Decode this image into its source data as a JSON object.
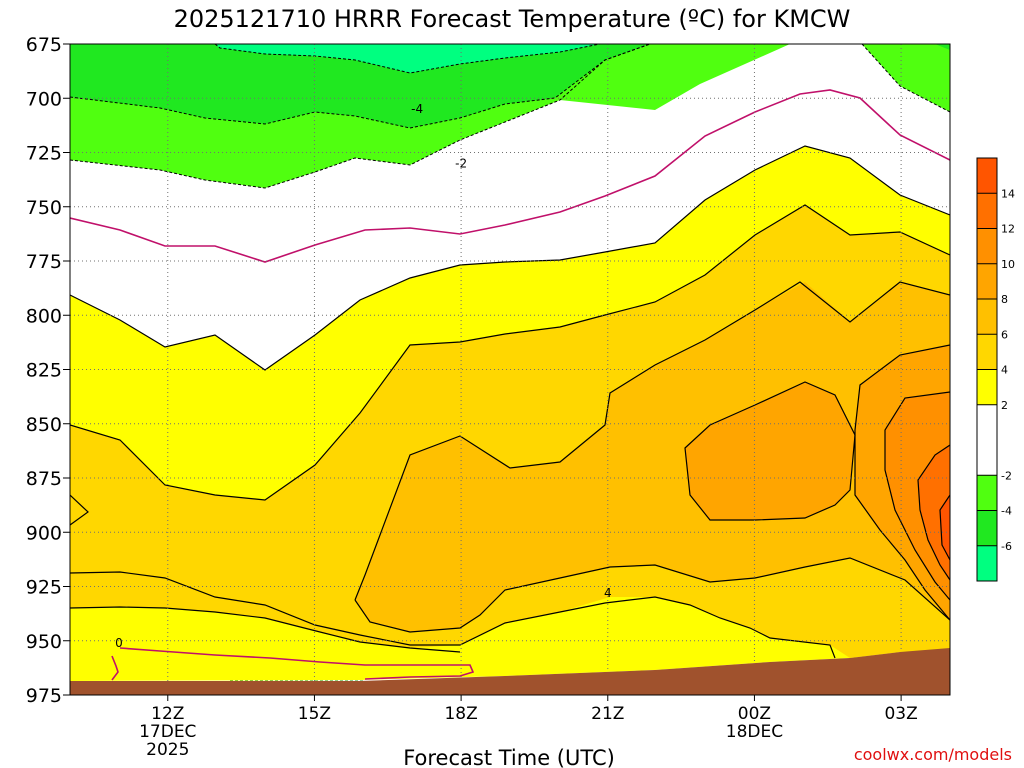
{
  "chart_data": {
    "type": "contour",
    "title": "2025121710 HRRR Forecast Temperature (ºC) for KMCW",
    "xlabel": "Forecast Time (UTC)",
    "ylabel": "",
    "credit": "coolwx.com/models",
    "x_ticks": [
      {
        "hour": 12,
        "label": "12Z",
        "sub": [
          "17DEC",
          "2025"
        ]
      },
      {
        "hour": 15,
        "label": "15Z",
        "sub": []
      },
      {
        "hour": 18,
        "label": "18Z",
        "sub": []
      },
      {
        "hour": 21,
        "label": "21Z",
        "sub": []
      },
      {
        "hour": 24,
        "label": "00Z",
        "sub": [
          "18DEC"
        ]
      },
      {
        "hour": 27,
        "label": "03Z",
        "sub": []
      }
    ],
    "xlim": [
      10.0,
      28.0
    ],
    "y_ticks": [
      675,
      700,
      725,
      750,
      775,
      800,
      825,
      850,
      875,
      900,
      925,
      950,
      975
    ],
    "ylim": [
      975,
      675
    ],
    "grid": true,
    "contour_interval": 2,
    "contour_labels": [
      {
        "text": "-4",
        "hour": 17.1,
        "p": 705
      },
      {
        "text": "-2",
        "hour": 18.0,
        "p": 730
      },
      {
        "text": "4",
        "hour": 21.0,
        "p": 928
      },
      {
        "text": "0",
        "hour": 11.0,
        "p": 951
      }
    ],
    "legend": {
      "placement": "right",
      "bands": [
        {
          "range": [
            -8,
            -6
          ],
          "color": "#00ff80"
        },
        {
          "range": [
            -6,
            -4
          ],
          "color": "#20e820"
        },
        {
          "range": [
            -4,
            -2
          ],
          "color": "#50ff10"
        },
        {
          "range": [
            -2,
            2
          ],
          "color": "#ffffff"
        },
        {
          "range": [
            2,
            4
          ],
          "color": "#ffff00"
        },
        {
          "range": [
            4,
            6
          ],
          "color": "#ffd700"
        },
        {
          "range": [
            6,
            8
          ],
          "color": "#ffc000"
        },
        {
          "range": [
            8,
            10
          ],
          "color": "#ffa500"
        },
        {
          "range": [
            10,
            12
          ],
          "color": "#ff9000"
        },
        {
          "range": [
            12,
            14
          ],
          "color": "#ff7000"
        },
        {
          "range": [
            14,
            16
          ],
          "color": "#ff5500"
        }
      ],
      "tick_labels": [
        "14",
        "12",
        "10",
        "8",
        "6",
        "4",
        "2",
        "-2",
        "-4",
        "-6"
      ]
    },
    "terrain_color": "#a0522d"
  }
}
